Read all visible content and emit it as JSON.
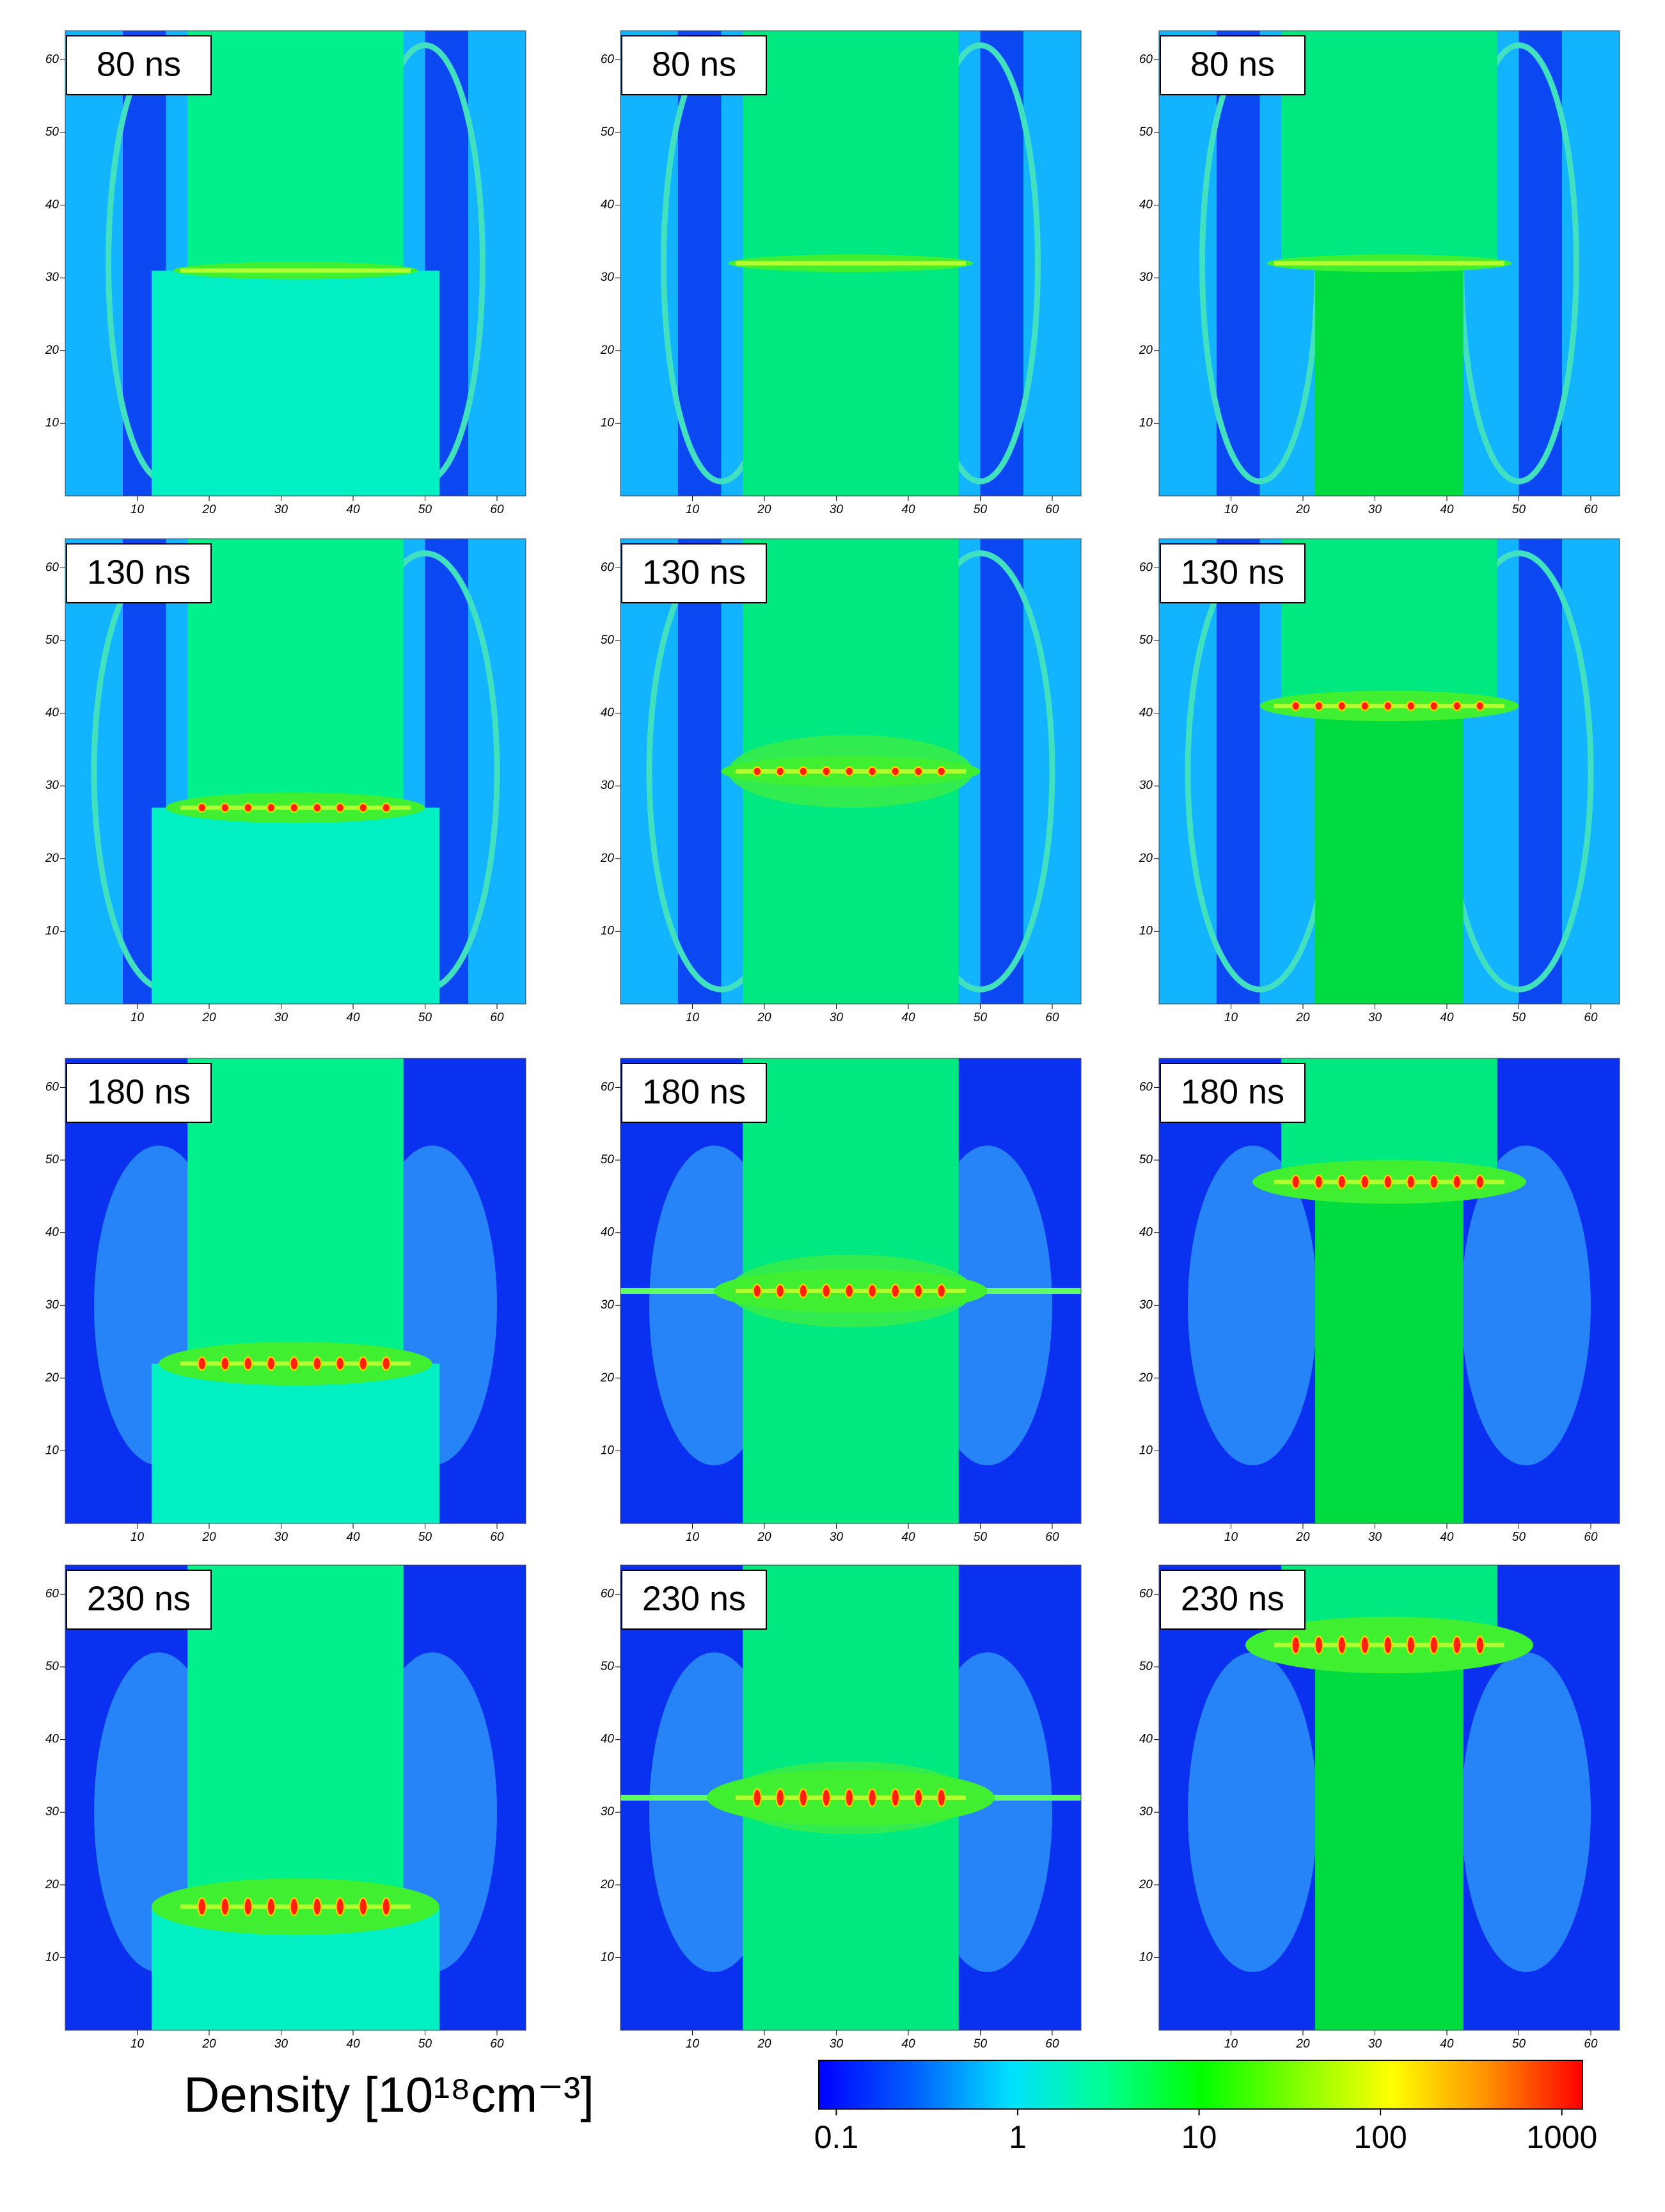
{
  "chart_data": [
    {
      "type": "heatmap",
      "title": "80 ns",
      "xlim": [
        0,
        64
      ],
      "ylim": [
        0,
        64
      ],
      "xticks": [
        10,
        20,
        30,
        40,
        50,
        60
      ],
      "yticks": [
        10,
        20,
        30,
        40,
        50,
        60
      ]
    },
    {
      "type": "heatmap",
      "title": "80 ns",
      "xlim": [
        0,
        64
      ],
      "ylim": [
        0,
        64
      ],
      "xticks": [
        10,
        20,
        30,
        40,
        50,
        60
      ],
      "yticks": [
        10,
        20,
        30,
        40,
        50,
        60
      ]
    },
    {
      "type": "heatmap",
      "title": "80 ns",
      "xlim": [
        0,
        64
      ],
      "ylim": [
        0,
        64
      ],
      "xticks": [
        10,
        20,
        30,
        40,
        50,
        60
      ],
      "yticks": [
        10,
        20,
        30,
        40,
        50,
        60
      ]
    },
    {
      "type": "heatmap",
      "title": "130 ns",
      "xlim": [
        0,
        64
      ],
      "ylim": [
        0,
        64
      ],
      "xticks": [
        10,
        20,
        30,
        40,
        50,
        60
      ],
      "yticks": [
        10,
        20,
        30,
        40,
        50,
        60
      ]
    },
    {
      "type": "heatmap",
      "title": "130 ns",
      "xlim": [
        0,
        64
      ],
      "ylim": [
        0,
        64
      ],
      "xticks": [
        10,
        20,
        30,
        40,
        50,
        60
      ],
      "yticks": [
        10,
        20,
        30,
        40,
        50,
        60
      ]
    },
    {
      "type": "heatmap",
      "title": "130 ns",
      "xlim": [
        0,
        64
      ],
      "ylim": [
        0,
        64
      ],
      "xticks": [
        10,
        20,
        30,
        40,
        50,
        60
      ],
      "yticks": [
        10,
        20,
        30,
        40,
        50,
        60
      ]
    },
    {
      "type": "heatmap",
      "title": "180 ns",
      "xlim": [
        0,
        64
      ],
      "ylim": [
        0,
        64
      ],
      "xticks": [
        10,
        20,
        30,
        40,
        50,
        60
      ],
      "yticks": [
        10,
        20,
        30,
        40,
        50,
        60
      ]
    },
    {
      "type": "heatmap",
      "title": "180 ns",
      "xlim": [
        0,
        64
      ],
      "ylim": [
        0,
        64
      ],
      "xticks": [
        10,
        20,
        30,
        40,
        50,
        60
      ],
      "yticks": [
        10,
        20,
        30,
        40,
        50,
        60
      ]
    },
    {
      "type": "heatmap",
      "title": "180 ns",
      "xlim": [
        0,
        64
      ],
      "ylim": [
        0,
        64
      ],
      "xticks": [
        10,
        20,
        30,
        40,
        50,
        60
      ],
      "yticks": [
        10,
        20,
        30,
        40,
        50,
        60
      ]
    },
    {
      "type": "heatmap",
      "title": "230 ns",
      "xlim": [
        0,
        64
      ],
      "ylim": [
        0,
        64
      ],
      "xticks": [
        10,
        20,
        30,
        40,
        50,
        60
      ],
      "yticks": [
        10,
        20,
        30,
        40,
        50,
        60
      ]
    },
    {
      "type": "heatmap",
      "title": "230 ns",
      "xlim": [
        0,
        64
      ],
      "ylim": [
        0,
        64
      ],
      "xticks": [
        10,
        20,
        30,
        40,
        50,
        60
      ],
      "yticks": [
        10,
        20,
        30,
        40,
        50,
        60
      ]
    },
    {
      "type": "heatmap",
      "title": "230 ns",
      "xlim": [
        0,
        64
      ],
      "ylim": [
        0,
        64
      ],
      "xticks": [
        10,
        20,
        30,
        40,
        50,
        60
      ],
      "yticks": [
        10,
        20,
        30,
        40,
        50,
        60
      ]
    },
    {
      "type": "colorbar",
      "label": "Density [10¹⁸cm⁻³]",
      "log_scale": true,
      "lim": [
        0.08,
        1300
      ],
      "ticks": [
        0.1,
        1,
        10,
        100,
        1000
      ],
      "colors": [
        "#0000ff",
        "#0060ff",
        "#00e0ff",
        "#00ff90",
        "#00ff00",
        "#80ff00",
        "#ffff00",
        "#ff9000",
        "#ff0000"
      ]
    }
  ]
}
